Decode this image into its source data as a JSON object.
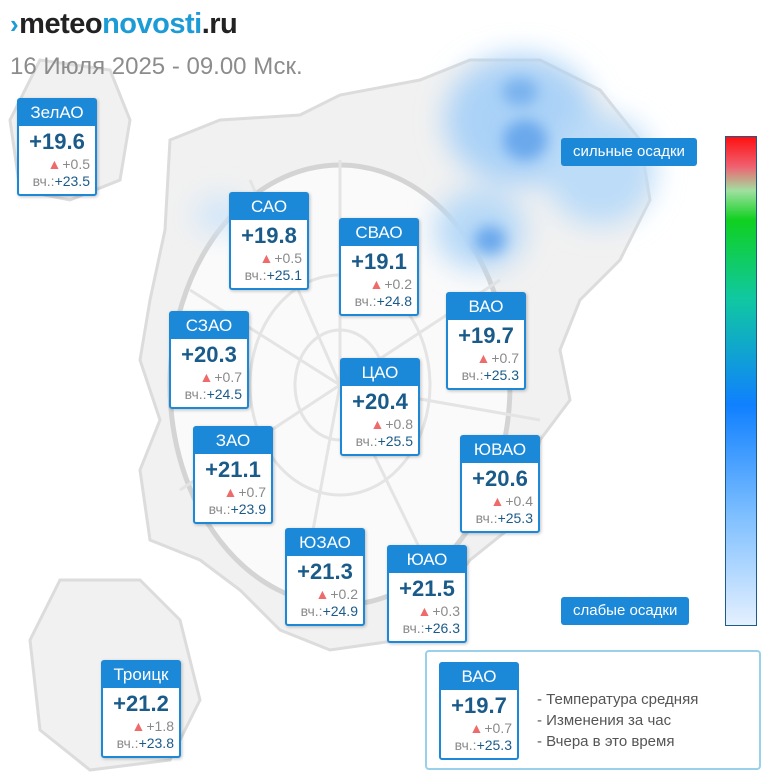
{
  "logo": {
    "mark": "›",
    "part_a": "meteo",
    "part_b": "novosti",
    "part_c": ".ru"
  },
  "subtitle": "16 Июля 2025 - 09.00 Мск.",
  "yesterday_label": "вч.:",
  "districts": [
    {
      "name": "ЗелАО",
      "temp": "+19.6",
      "change": "+0.5",
      "yesterday": "+23.5"
    },
    {
      "name": "САО",
      "temp": "+19.8",
      "change": "+0.5",
      "yesterday": "+25.1"
    },
    {
      "name": "СВАО",
      "temp": "+19.1",
      "change": "+0.2",
      "yesterday": "+24.8"
    },
    {
      "name": "ВАО",
      "temp": "+19.7",
      "change": "+0.7",
      "yesterday": "+25.3"
    },
    {
      "name": "СЗАО",
      "temp": "+20.3",
      "change": "+0.7",
      "yesterday": "+24.5"
    },
    {
      "name": "ЦАО",
      "temp": "+20.4",
      "change": "+0.8",
      "yesterday": "+25.5"
    },
    {
      "name": "ЗАО",
      "temp": "+21.1",
      "change": "+0.7",
      "yesterday": "+23.9"
    },
    {
      "name": "ЮВАО",
      "temp": "+20.6",
      "change": "+0.4",
      "yesterday": "+25.3"
    },
    {
      "name": "ЮЗАО",
      "temp": "+21.3",
      "change": "+0.2",
      "yesterday": "+24.9"
    },
    {
      "name": "ЮАО",
      "temp": "+21.5",
      "change": "+0.3",
      "yesterday": "+26.3"
    },
    {
      "name": "Троицк",
      "temp": "+21.2",
      "change": "+1.8",
      "yesterday": "+23.8"
    }
  ],
  "scale": {
    "top_label": "сильные осадки",
    "bottom_label": "слабые осадки"
  },
  "legend": {
    "sample": {
      "name": "ВАО",
      "temp": "+19.7",
      "change": "+0.7",
      "yesterday": "+25.3"
    },
    "rows": [
      "- Температура средняя",
      "- Изменения за час",
      "- Вчера в это время"
    ]
  },
  "colors": {
    "accent": "#1c89d8",
    "temp_text": "#1a5b8a",
    "rise_arrow": "#ef6a6a",
    "precip_light": "#66aaee"
  }
}
